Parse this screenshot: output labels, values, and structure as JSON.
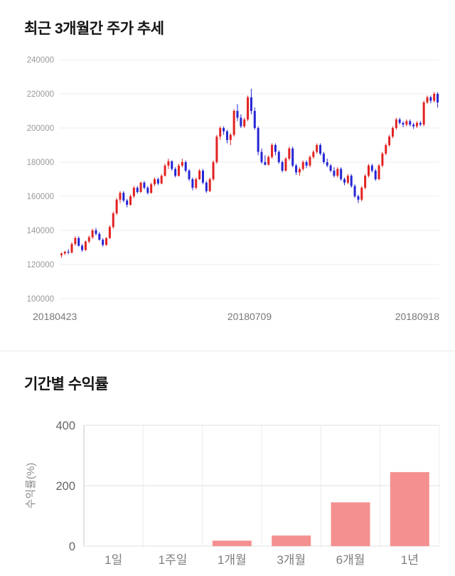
{
  "sections": {
    "price_trend": {
      "title": "최근 3개월간 주가 추세"
    },
    "returns": {
      "title": "기간별 수익률"
    }
  },
  "chart_data": [
    {
      "type": "candlestick",
      "title": "최근 3개월간 주가 추세",
      "ylim": [
        100000,
        240000
      ],
      "y_ticks": [
        100000,
        120000,
        140000,
        160000,
        180000,
        200000,
        220000,
        240000
      ],
      "x_labels": [
        "20180423",
        "20180709",
        "20180918"
      ],
      "up_color": "#e32222",
      "down_color": "#2525d6",
      "grid": "horizontal",
      "candles": [
        [
          125500,
          127000,
          124000,
          126500
        ],
        [
          126500,
          128000,
          125500,
          127500
        ],
        [
          127500,
          129000,
          126000,
          127000
        ],
        [
          127000,
          133000,
          126500,
          132000
        ],
        [
          132000,
          136500,
          131000,
          135500
        ],
        [
          135500,
          136500,
          130500,
          131000
        ],
        [
          131000,
          132000,
          127500,
          128500
        ],
        [
          128500,
          134000,
          128000,
          133500
        ],
        [
          133500,
          137000,
          132500,
          136000
        ],
        [
          136000,
          141000,
          135000,
          140000
        ],
        [
          140000,
          141500,
          137000,
          138000
        ],
        [
          138000,
          139000,
          134000,
          134500
        ],
        [
          134500,
          135500,
          130500,
          131500
        ],
        [
          131500,
          136000,
          131000,
          135500
        ],
        [
          135500,
          143000,
          135000,
          142000
        ],
        [
          142000,
          151000,
          141000,
          150000
        ],
        [
          150000,
          159000,
          149000,
          158000
        ],
        [
          158000,
          163000,
          156000,
          162000
        ],
        [
          162000,
          163000,
          156500,
          157500
        ],
        [
          157500,
          158500,
          153500,
          155000
        ],
        [
          155000,
          161000,
          154500,
          160000
        ],
        [
          160000,
          166000,
          159000,
          165000
        ],
        [
          165000,
          166000,
          161500,
          162500
        ],
        [
          162500,
          168500,
          162000,
          168000
        ],
        [
          168000,
          169000,
          164000,
          165000
        ],
        [
          165000,
          166000,
          161000,
          162000
        ],
        [
          162000,
          168000,
          161500,
          167000
        ],
        [
          167000,
          171000,
          166000,
          170000
        ],
        [
          170000,
          171000,
          166500,
          167500
        ],
        [
          167500,
          173000,
          167000,
          172000
        ],
        [
          172000,
          179000,
          171500,
          178000
        ],
        [
          178000,
          182000,
          176000,
          180500
        ],
        [
          180500,
          181000,
          175000,
          176000
        ],
        [
          176000,
          177000,
          171000,
          172000
        ],
        [
          172000,
          179000,
          171500,
          178000
        ],
        [
          178000,
          182000,
          177000,
          180000
        ],
        [
          180000,
          181000,
          174000,
          175000
        ],
        [
          175000,
          176000,
          169000,
          170000
        ],
        [
          170000,
          171000,
          163500,
          165000
        ],
        [
          165000,
          171000,
          164000,
          170000
        ],
        [
          170000,
          176000,
          169500,
          175000
        ],
        [
          175000,
          176000,
          167000,
          168000
        ],
        [
          168000,
          169000,
          162000,
          163000
        ],
        [
          163000,
          171000,
          162500,
          170000
        ],
        [
          170000,
          181000,
          169000,
          180000
        ],
        [
          180000,
          196000,
          179000,
          195000
        ],
        [
          195000,
          201000,
          193000,
          200000
        ],
        [
          200000,
          201000,
          196000,
          198000
        ],
        [
          198000,
          199000,
          191000,
          193000
        ],
        [
          193000,
          197000,
          190000,
          196000
        ],
        [
          196000,
          211000,
          195000,
          210000
        ],
        [
          210000,
          214000,
          204000,
          206000
        ],
        [
          206000,
          208000,
          200000,
          201000
        ],
        [
          201000,
          206000,
          200000,
          205000
        ],
        [
          205000,
          219000,
          204000,
          218000
        ],
        [
          218000,
          223000,
          208000,
          210000
        ],
        [
          210000,
          212000,
          199000,
          200000
        ],
        [
          200000,
          201000,
          184000,
          186000
        ],
        [
          186000,
          188000,
          179000,
          180000
        ],
        [
          180000,
          184000,
          178000,
          178500
        ],
        [
          178500,
          184000,
          178000,
          183000
        ],
        [
          183000,
          191000,
          182000,
          190000
        ],
        [
          190000,
          191000,
          184000,
          186000
        ],
        [
          186000,
          187000,
          179000,
          180000
        ],
        [
          180000,
          181000,
          174000,
          175000
        ],
        [
          175000,
          183000,
          174500,
          182000
        ],
        [
          182000,
          189000,
          181000,
          188000
        ],
        [
          188000,
          189000,
          177000,
          178000
        ],
        [
          178000,
          179000,
          172500,
          174000
        ],
        [
          174000,
          177000,
          172000,
          176000
        ],
        [
          176000,
          181000,
          175000,
          180000
        ],
        [
          180000,
          181000,
          176500,
          178000
        ],
        [
          178000,
          184000,
          177000,
          183000
        ],
        [
          183000,
          187000,
          182000,
          186000
        ],
        [
          186000,
          191000,
          185000,
          190000
        ],
        [
          190000,
          191000,
          184000,
          185000
        ],
        [
          185000,
          186000,
          179000,
          180000
        ],
        [
          180000,
          182000,
          177000,
          178000
        ],
        [
          178000,
          179000,
          174000,
          175000
        ],
        [
          175000,
          177000,
          171000,
          172000
        ],
        [
          172000,
          177000,
          171000,
          176000
        ],
        [
          176000,
          177000,
          169000,
          170000
        ],
        [
          170000,
          171000,
          166500,
          168000
        ],
        [
          168000,
          173000,
          167000,
          172000
        ],
        [
          172000,
          173000,
          165000,
          166000
        ],
        [
          166000,
          167000,
          159000,
          160000
        ],
        [
          160000,
          161000,
          156000,
          158000
        ],
        [
          158000,
          166000,
          157000,
          165000
        ],
        [
          165000,
          173000,
          164000,
          172000
        ],
        [
          172000,
          179000,
          171000,
          178000
        ],
        [
          178000,
          179000,
          174000,
          175000
        ],
        [
          175000,
          176000,
          169000,
          170000
        ],
        [
          170000,
          179000,
          169500,
          178000
        ],
        [
          178000,
          186000,
          177000,
          185000
        ],
        [
          185000,
          191000,
          184000,
          190000
        ],
        [
          190000,
          196000,
          189000,
          195000
        ],
        [
          195000,
          201000,
          194000,
          200000
        ],
        [
          200000,
          206000,
          199000,
          205000
        ],
        [
          205000,
          206000,
          202000,
          203000
        ],
        [
          203000,
          204000,
          200500,
          202000
        ],
        [
          202000,
          205000,
          201000,
          204000
        ],
        [
          204000,
          205000,
          201000,
          202000
        ],
        [
          202000,
          203000,
          199500,
          201000
        ],
        [
          201000,
          204000,
          200000,
          203000
        ],
        [
          203000,
          204000,
          201000,
          202000
        ],
        [
          202000,
          216000,
          201000,
          215000
        ],
        [
          215000,
          219000,
          214000,
          218000
        ],
        [
          218000,
          219000,
          214500,
          216000
        ],
        [
          216000,
          221000,
          215000,
          220000
        ],
        [
          220000,
          221000,
          212000,
          215000
        ]
      ]
    },
    {
      "type": "bar",
      "title": "기간별 수익률",
      "categories": [
        "1일",
        "1주일",
        "1개월",
        "3개월",
        "6개월",
        "1년"
      ],
      "values": [
        0,
        0,
        18,
        35,
        145,
        245
      ],
      "ylabel": "수익률(%)",
      "xlabel": "",
      "y_ticks": [
        0,
        200,
        400
      ],
      "ylim": [
        0,
        400
      ],
      "bar_color": "#f59090",
      "grid": "both",
      "legend": "none"
    }
  ]
}
